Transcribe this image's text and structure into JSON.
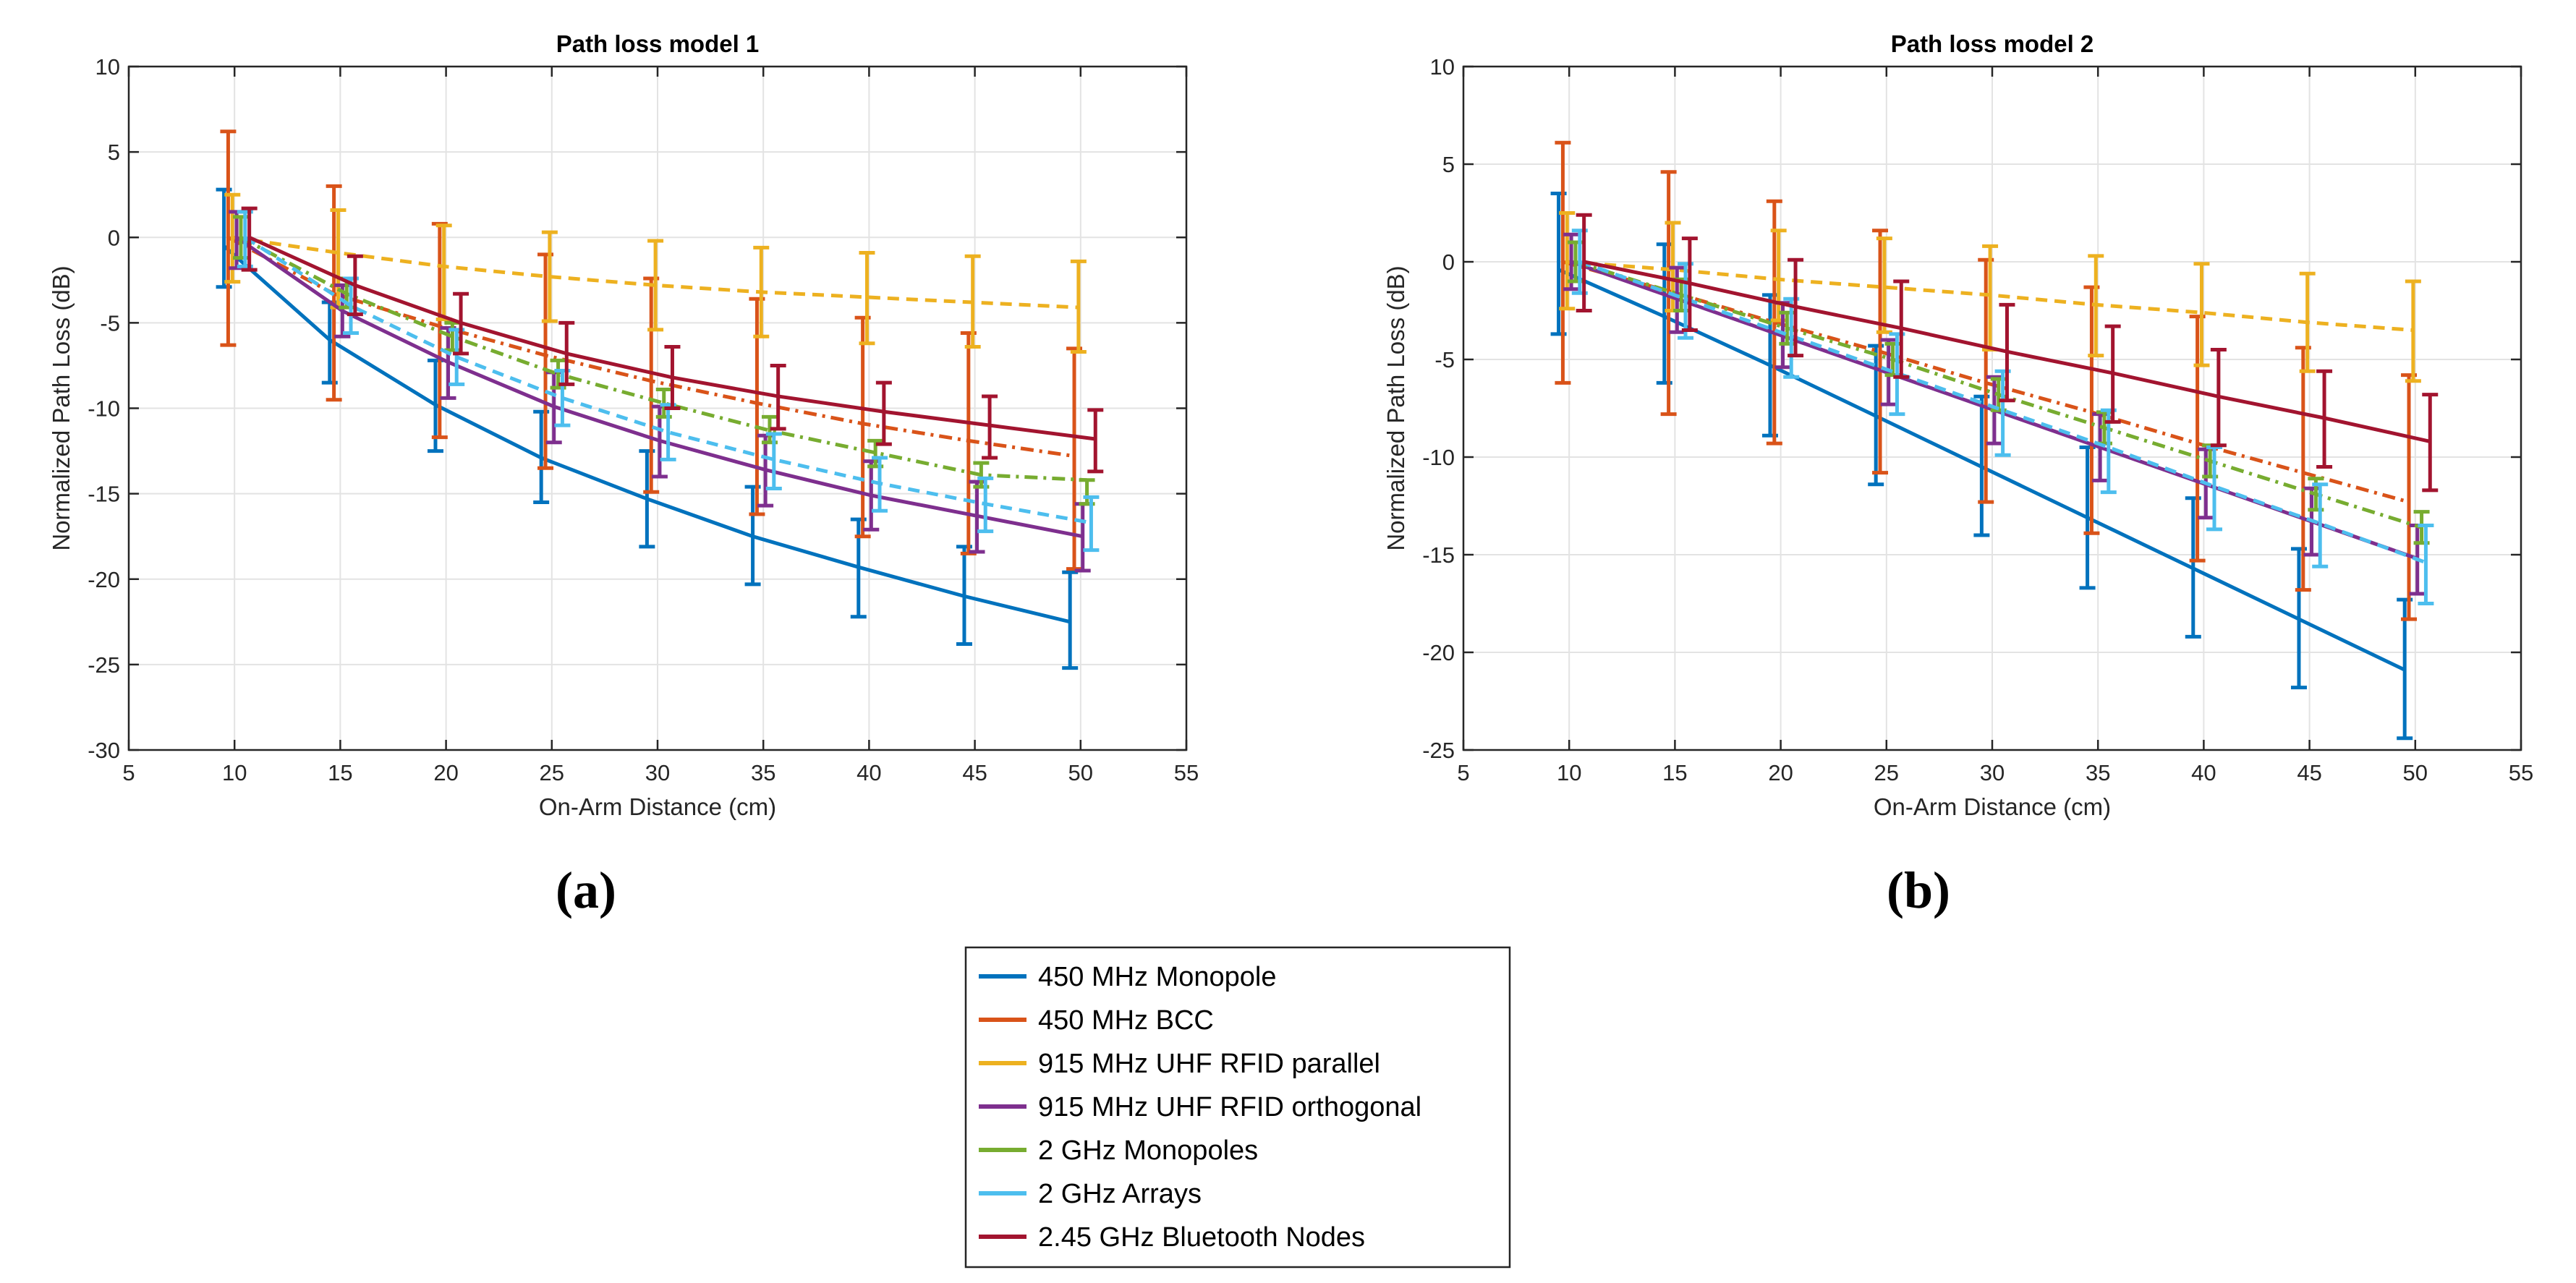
{
  "figure_labels": [
    "(a)",
    "(b)"
  ],
  "legend": {
    "entries": [
      {
        "label": "450 MHz Monopole",
        "color": "#0072bd",
        "dash": "solid"
      },
      {
        "label": "450 MHz BCC",
        "color": "#d95319",
        "dash": "dashdot"
      },
      {
        "label": "915 MHz UHF RFID parallel",
        "color": "#edb120",
        "dash": "dashed"
      },
      {
        "label": "915 MHz UHF RFID orthogonal",
        "color": "#7e2f8e",
        "dash": "solid"
      },
      {
        "label": "2 GHz Monopoles",
        "color": "#77ac30",
        "dash": "dashdot"
      },
      {
        "label": "2 GHz Arrays",
        "color": "#4dbeee",
        "dash": "dashed"
      },
      {
        "label": "2.45 GHz Bluetooth Nodes",
        "color": "#a2142f",
        "dash": "solid"
      }
    ]
  },
  "chart_data": [
    {
      "type": "line",
      "title": "Path loss model 1",
      "xlabel": "On-Arm Distance (cm)",
      "ylabel": "Normalized Path Loss (dB)",
      "xlim": [
        5,
        55
      ],
      "ylim": [
        -30,
        10
      ],
      "xticks": [
        5,
        10,
        15,
        20,
        25,
        30,
        35,
        40,
        45,
        50,
        55
      ],
      "yticks": [
        -30,
        -25,
        -20,
        -15,
        -10,
        -5,
        0,
        5,
        10
      ],
      "grid": true,
      "x": [
        10,
        15,
        20,
        25,
        30,
        35,
        40,
        45,
        50
      ],
      "series": [
        {
          "name": "450 MHz Monopole",
          "offset": -0.5,
          "values": [
            -0.5,
            -6.0,
            -9.8,
            -12.9,
            -15.3,
            -17.5,
            -19.3,
            -21.0,
            -22.5
          ],
          "err": [
            [
              -2.9,
              2.8
            ],
            [
              -8.5,
              -3.8
            ],
            [
              -12.5,
              -7.2
            ],
            [
              -15.5,
              -10.2
            ],
            [
              -18.1,
              -12.5
            ],
            [
              -20.3,
              -14.6
            ],
            [
              -22.2,
              -16.5
            ],
            [
              -23.8,
              -18.1
            ],
            [
              -25.2,
              -19.6
            ]
          ]
        },
        {
          "name": "450 MHz BCC",
          "offset": -0.3,
          "values": [
            0,
            -3.3,
            -5.2,
            -6.9,
            -8.4,
            -9.7,
            -10.9,
            -11.9,
            -12.8
          ],
          "err": [
            [
              -6.3,
              6.2
            ],
            [
              -9.5,
              3.0
            ],
            [
              -11.7,
              0.8
            ],
            [
              -13.5,
              -1.0
            ],
            [
              -14.9,
              -2.4
            ],
            [
              -16.2,
              -3.6
            ],
            [
              -17.5,
              -4.7
            ],
            [
              -18.5,
              -5.6
            ],
            [
              -19.4,
              -6.5
            ]
          ]
        },
        {
          "name": "915 MHz UHF RFID parallel",
          "offset": -0.1,
          "values": [
            0,
            -0.9,
            -1.7,
            -2.3,
            -2.8,
            -3.2,
            -3.5,
            -3.8,
            -4.1
          ],
          "err": [
            [
              -2.6,
              2.5
            ],
            [
              -4.1,
              1.6
            ],
            [
              -4.8,
              0.7
            ],
            [
              -4.9,
              0.3
            ],
            [
              -5.4,
              -0.2
            ],
            [
              -5.8,
              -0.6
            ],
            [
              -6.2,
              -0.9
            ],
            [
              -6.4,
              -1.1
            ],
            [
              -6.7,
              -1.4
            ]
          ]
        },
        {
          "name": "915 MHz UHF RFID orthogonal",
          "offset": 0.1,
          "values": [
            0,
            -4.3,
            -7.3,
            -9.9,
            -11.9,
            -13.6,
            -15.1,
            -16.3,
            -17.5
          ],
          "err": [
            [
              -1.8,
              1.5
            ],
            [
              -5.8,
              -2.8
            ],
            [
              -9.4,
              -5.3
            ],
            [
              -12.0,
              -7.9
            ],
            [
              -14.0,
              -9.9
            ],
            [
              -15.7,
              -11.6
            ],
            [
              -17.1,
              -13.1
            ],
            [
              -18.4,
              -14.3
            ],
            [
              -19.5,
              -15.6
            ]
          ]
        },
        {
          "name": "2 GHz Monopoles",
          "offset": 0.3,
          "values": [
            0,
            -3.3,
            -5.8,
            -8.0,
            -9.7,
            -11.3,
            -12.6,
            -13.9,
            -14.2
          ],
          "err": [
            [
              -1.2,
              1.2
            ],
            [
              -4.1,
              -2.4
            ],
            [
              -6.6,
              -5.0
            ],
            [
              -8.8,
              -7.2
            ],
            [
              -10.5,
              -8.9
            ],
            [
              -12.0,
              -10.5
            ],
            [
              -13.4,
              -11.9
            ],
            [
              -14.6,
              -13.2
            ],
            [
              -15.6,
              -14.2
            ]
          ]
        },
        {
          "name": "2 GHz Arrays",
          "offset": 0.5,
          "values": [
            0,
            -4.0,
            -7.0,
            -9.4,
            -11.4,
            -13.0,
            -14.4,
            -15.6,
            -16.7
          ],
          "err": [
            [
              -1.7,
              1.5
            ],
            [
              -5.6,
              -2.4
            ],
            [
              -8.6,
              -5.4
            ],
            [
              -11.0,
              -7.8
            ],
            [
              -13.0,
              -9.8
            ],
            [
              -14.7,
              -11.5
            ],
            [
              -16.0,
              -12.9
            ],
            [
              -17.2,
              -14.1
            ],
            [
              -18.3,
              -15.2
            ]
          ]
        },
        {
          "name": "2.45 GHz Bluetooth Nodes",
          "offset": 0.7,
          "values": [
            0,
            -2.8,
            -5.0,
            -6.8,
            -8.2,
            -9.3,
            -10.2,
            -11.0,
            -11.8
          ],
          "err": [
            [
              -1.9,
              1.7
            ],
            [
              -4.5,
              -1.1
            ],
            [
              -6.8,
              -3.3
            ],
            [
              -8.6,
              -5.0
            ],
            [
              -10.0,
              -6.4
            ],
            [
              -11.2,
              -7.5
            ],
            [
              -12.1,
              -8.5
            ],
            [
              -12.9,
              -9.3
            ],
            [
              -13.7,
              -10.1
            ]
          ]
        }
      ]
    },
    {
      "type": "line",
      "title": "Path loss model 2",
      "xlabel": "On-Arm Distance (cm)",
      "ylabel": "Normalized Path Loss (dB)",
      "xlim": [
        5,
        55
      ],
      "ylim": [
        -25,
        10
      ],
      "xticks": [
        5,
        10,
        15,
        20,
        25,
        30,
        35,
        40,
        45,
        50,
        55
      ],
      "yticks": [
        -25,
        -20,
        -15,
        -10,
        -5,
        0,
        5,
        10
      ],
      "grid": true,
      "x": [
        10,
        15,
        20,
        25,
        30,
        35,
        40,
        45,
        50
      ],
      "series": [
        {
          "name": "450 MHz Monopole",
          "offset": -0.5,
          "values": [
            -0.4,
            -2.8,
            -5.3,
            -7.9,
            -10.5,
            -13.1,
            -15.7,
            -18.3,
            -20.9
          ],
          "err": [
            [
              -3.7,
              3.5
            ],
            [
              -6.2,
              0.9
            ],
            [
              -8.9,
              -1.7
            ],
            [
              -11.4,
              -4.3
            ],
            [
              -14.0,
              -6.9
            ],
            [
              -16.7,
              -9.5
            ],
            [
              -19.2,
              -12.1
            ],
            [
              -21.8,
              -14.7
            ],
            [
              -24.4,
              -17.3
            ]
          ]
        },
        {
          "name": "450 MHz BCC",
          "offset": -0.3,
          "values": [
            0,
            -1.5,
            -3.1,
            -4.6,
            -6.2,
            -7.7,
            -9.3,
            -10.8,
            -12.3
          ],
          "err": [
            [
              -6.2,
              6.1
            ],
            [
              -7.8,
              4.6
            ],
            [
              -9.3,
              3.1
            ],
            [
              -10.8,
              1.6
            ],
            [
              -12.3,
              0.1
            ],
            [
              -13.9,
              -1.3
            ],
            [
              -15.3,
              -2.8
            ],
            [
              -16.8,
              -4.4
            ],
            [
              -18.3,
              -5.8
            ]
          ]
        },
        {
          "name": "915 MHz UHF RFID parallel",
          "offset": -0.1,
          "values": [
            0,
            -0.4,
            -0.9,
            -1.3,
            -1.7,
            -2.2,
            -2.6,
            -3.1,
            -3.5
          ],
          "err": [
            [
              -2.4,
              2.5
            ],
            [
              -2.5,
              2.0
            ],
            [
              -3.0,
              1.6
            ],
            [
              -3.6,
              1.2
            ],
            [
              -4.5,
              0.8
            ],
            [
              -4.8,
              0.3
            ],
            [
              -5.3,
              -0.1
            ],
            [
              -5.6,
              -0.6
            ],
            [
              -6.1,
              -1.0
            ]
          ]
        },
        {
          "name": "915 MHz UHF RFID orthogonal",
          "offset": 0.1,
          "values": [
            0,
            -1.9,
            -3.8,
            -5.7,
            -7.6,
            -9.5,
            -11.4,
            -13.3,
            -15.2
          ],
          "err": [
            [
              -1.4,
              1.4
            ],
            [
              -3.6,
              -0.3
            ],
            [
              -5.4,
              -2.1
            ],
            [
              -7.3,
              -4.0
            ],
            [
              -9.3,
              -5.9
            ],
            [
              -11.2,
              -7.8
            ],
            [
              -13.1,
              -9.6
            ],
            [
              -15.0,
              -11.6
            ],
            [
              -17.0,
              -13.5
            ]
          ]
        },
        {
          "name": "2 GHz Monopoles",
          "offset": 0.3,
          "values": [
            0,
            -1.7,
            -3.4,
            -5.0,
            -6.8,
            -8.5,
            -10.2,
            -11.9,
            -13.6
          ],
          "err": [
            [
              -1.0,
              1.0
            ],
            [
              -2.5,
              -0.9
            ],
            [
              -4.2,
              -2.6
            ],
            [
              -5.8,
              -4.2
            ],
            [
              -7.6,
              -6.0
            ],
            [
              -9.3,
              -7.7
            ],
            [
              -11.0,
              -9.4
            ],
            [
              -12.7,
              -11.1
            ],
            [
              -14.4,
              -12.8
            ]
          ]
        },
        {
          "name": "2 GHz Arrays",
          "offset": 0.5,
          "values": [
            0,
            -1.9,
            -3.8,
            -5.7,
            -7.6,
            -9.5,
            -11.5,
            -13.4,
            -15.4
          ],
          "err": [
            [
              -1.6,
              1.6
            ],
            [
              -3.9,
              -0.1
            ],
            [
              -5.9,
              -1.9
            ],
            [
              -7.8,
              -3.7
            ],
            [
              -9.9,
              -5.6
            ],
            [
              -11.8,
              -7.6
            ],
            [
              -13.7,
              -9.5
            ],
            [
              -15.6,
              -11.4
            ],
            [
              -17.5,
              -13.5
            ]
          ]
        },
        {
          "name": "2.45 GHz Bluetooth Nodes",
          "offset": 0.7,
          "values": [
            0,
            -1.1,
            -2.3,
            -3.4,
            -4.6,
            -5.7,
            -6.9,
            -8.0,
            -9.2
          ],
          "err": [
            [
              -2.5,
              2.4
            ],
            [
              -3.5,
              1.2
            ],
            [
              -4.8,
              0.1
            ],
            [
              -5.9,
              -1.0
            ],
            [
              -7.1,
              -2.2
            ],
            [
              -8.2,
              -3.3
            ],
            [
              -9.4,
              -4.5
            ],
            [
              -10.5,
              -5.6
            ],
            [
              -11.7,
              -6.8
            ]
          ]
        }
      ]
    }
  ]
}
